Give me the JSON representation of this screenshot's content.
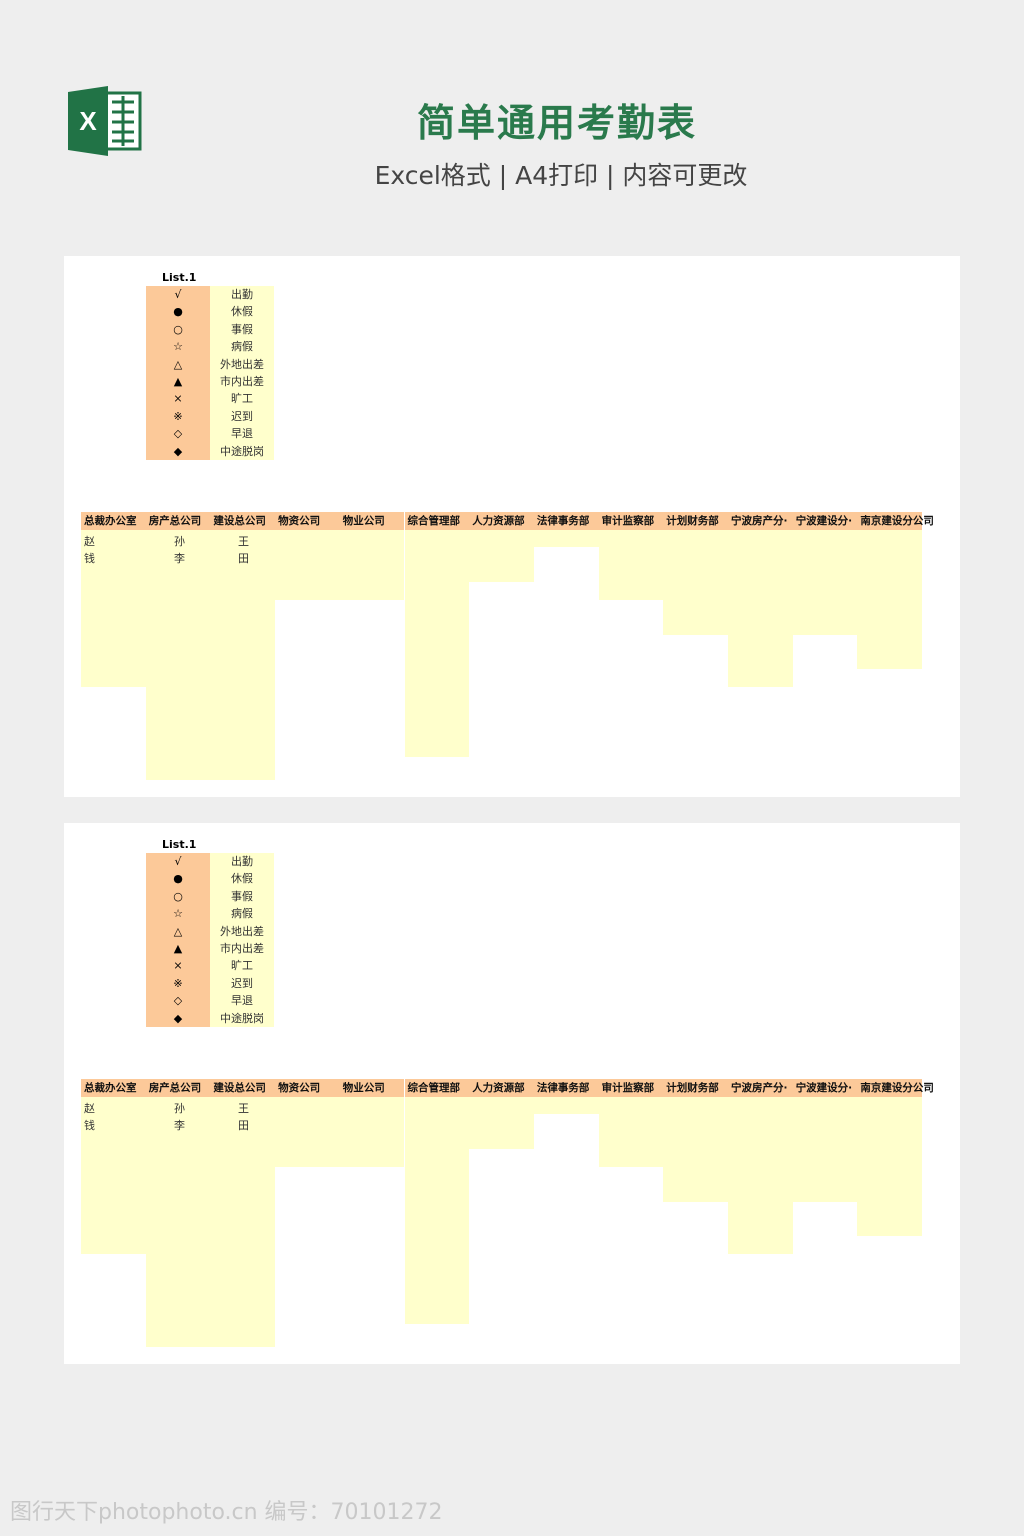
{
  "header": {
    "title": "简单通用考勤表",
    "subtitle": "Excel格式 | A4打印 | 内容可更改",
    "logo_icon": "excel-icon",
    "logo_color": "#217346"
  },
  "sheet": {
    "legend_title": "List.1",
    "legend": [
      {
        "symbol": "√",
        "label": "出勤"
      },
      {
        "symbol": "●",
        "label": "休假"
      },
      {
        "symbol": "○",
        "label": "事假"
      },
      {
        "symbol": "☆",
        "label": "病假"
      },
      {
        "symbol": "△",
        "label": "外地出差"
      },
      {
        "symbol": "▲",
        "label": "市内出差"
      },
      {
        "symbol": "×",
        "label": "旷工"
      },
      {
        "symbol": "※",
        "label": "迟到"
      },
      {
        "symbol": "◇",
        "label": "早退"
      },
      {
        "symbol": "◆",
        "label": "中途脱岗"
      }
    ],
    "columns": [
      "总裁办公室",
      "房产总公司",
      "建设总公司",
      "物资公司",
      "物业公司",
      "综合管理部",
      "人力资源部",
      "法律事务部",
      "审计监察部",
      "计划财务部",
      "宁波房产分·",
      "宁波建设分·",
      "南京建设分公司"
    ],
    "rows": [
      [
        "赵",
        "孙",
        "王"
      ],
      [
        "钱",
        "李",
        "田"
      ]
    ],
    "header_color": "#fcc999",
    "fill_color": "#ffffcc"
  },
  "watermark": "图行天下photophoto.cn 编号：70101272"
}
